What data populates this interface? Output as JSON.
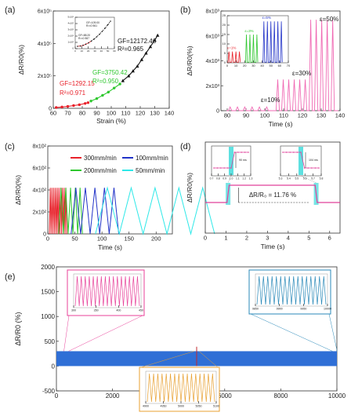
{
  "chart_data": [
    {
      "panel": "(a)",
      "type": "scatter",
      "xlabel": "Strain (%)",
      "ylabel": "ΔR/R0(%)",
      "xlim": [
        60,
        140
      ],
      "ylim": [
        0,
        600000
      ],
      "xticks": [
        "60",
        "70",
        "80",
        "90",
        "100",
        "110",
        "120",
        "130",
        "140"
      ],
      "yticks": [
        "0",
        "2x10⁵",
        "4x10⁵",
        "6x10⁵"
      ],
      "series": [
        {
          "color": "#e8212a",
          "x": [
            62,
            66,
            70,
            74,
            78,
            82,
            84
          ],
          "y": [
            5000,
            8000,
            12000,
            17000,
            22000,
            30000,
            35000
          ]
        },
        {
          "color": "#2ec72e",
          "x": [
            86,
            90,
            94,
            98,
            102,
            106
          ],
          "y": [
            45000,
            60000,
            80000,
            100000,
            125000,
            150000
          ]
        },
        {
          "color": "#111111",
          "x": [
            108,
            112,
            115,
            118,
            121,
            124,
            127,
            130,
            132
          ],
          "y": [
            170000,
            200000,
            230000,
            260000,
            300000,
            340000,
            380000,
            420000,
            450000
          ]
        }
      ],
      "annotations": [
        {
          "text": "GF=1292.15",
          "color": "#e8212a"
        },
        {
          "text": "R²=0.971",
          "color": "#e8212a"
        },
        {
          "text": "GF=3750.42",
          "color": "#2ec72e"
        },
        {
          "text": "R²=0.950",
          "color": "#2ec72e"
        },
        {
          "text": "GF=12172.46",
          "color": "#111111"
        },
        {
          "text": "R²=0.965",
          "color": "#111111"
        }
      ],
      "inset": {
        "xticks": [
          "0",
          "10",
          "20",
          "30",
          "40",
          "50",
          "60"
        ],
        "yticks": [
          "0",
          "1x10³",
          "2x10³",
          "3x10³",
          "4x10³",
          "5x10³"
        ],
        "labels": [
          "GF=109.00",
          "R²=0.961",
          "GF=88.20",
          "R²=0.987"
        ]
      }
    },
    {
      "panel": "(b)",
      "type": "line",
      "xlabel": "Time (s)",
      "ylabel": "ΔR/R0(%)",
      "xlim": [
        75,
        140
      ],
      "ylim": [
        0,
        8000
      ],
      "xticks": [
        "80",
        "90",
        "100",
        "110",
        "120",
        "130",
        "140"
      ],
      "yticks": [
        "0",
        "2x10³",
        "4x10³",
        "6x10³",
        "8x10³"
      ],
      "annotations": [
        "ε=10%",
        "ε=30%",
        "ε=50%"
      ],
      "series": [
        {
          "label": "ε=10%",
          "color": "#f06ab4",
          "peaks_x": [
            80,
            84,
            88,
            92,
            96,
            100
          ],
          "peak_value": 300
        },
        {
          "label": "ε=30%",
          "color": "#f06ab4",
          "peaks_x": [
            106,
            109,
            112,
            115,
            118,
            121
          ],
          "peak_value": 2500
        },
        {
          "label": "ε=50%",
          "color": "#f06ab4",
          "peaks_x": [
            124,
            127,
            130,
            133,
            136
          ],
          "peak_value": 7300
        }
      ],
      "inset": {
        "xticks": [
          "0",
          "10",
          "20",
          "30",
          "40",
          "50",
          "60",
          "70"
        ],
        "yticks": [
          "0",
          "5",
          "10",
          "15",
          "20",
          "25"
        ],
        "series": [
          {
            "label": "ε=1%",
            "color": "#e8212a",
            "peaks_x": [
              2,
              6,
              10,
              14
            ],
            "peak_value": 6
          },
          {
            "label": "ε=3%",
            "color": "#2ec72e",
            "peaks_x": [
              22,
              26,
              30,
              34
            ],
            "peak_value": 15
          },
          {
            "label": "ε=5%",
            "color": "#2233c8",
            "peaks_x": [
              42,
              46,
              50,
              54,
              58,
              62
            ],
            "peak_value": 22
          }
        ]
      }
    },
    {
      "panel": "(c)",
      "type": "line",
      "xlabel": "Time (s)",
      "ylabel": "ΔR/R0(%)",
      "xlim": [
        0,
        230
      ],
      "ylim": [
        0,
        800
      ],
      "xticks": [
        "0",
        "50",
        "100",
        "150",
        "200"
      ],
      "yticks": [
        "0",
        "2x10²",
        "4x10²",
        "6x10²",
        "8x10²"
      ],
      "peak_value": 420,
      "series": [
        {
          "name": "300mm/min",
          "color": "#e8212a",
          "start": 3,
          "period": 1.6,
          "cycles": 10
        },
        {
          "name": "200mm/min",
          "color": "#2ec72e",
          "start": 20,
          "period": 4.4,
          "cycles": 5
        },
        {
          "name": "100mm/min",
          "color": "#2233c8",
          "start": 43,
          "period": 8.8,
          "cycles": 5
        },
        {
          "name": "50mm/min",
          "color": "#2ee8e8",
          "start": 88,
          "period": 22,
          "cycles": 5
        }
      ]
    },
    {
      "panel": "(d)",
      "type": "line",
      "xlabel": "Time (s)",
      "ylabel": "ΔR/R0(%)",
      "xlim": [
        0,
        6.5
      ],
      "xticks": [
        "0",
        "1",
        "2",
        "3",
        "4",
        "5",
        "6"
      ],
      "baseline": 0,
      "plateau": 11.76,
      "step_up_time": 1.1,
      "step_down_time": 5.35,
      "annotation": "ΔR/R₀ = 11.76 %",
      "insets": [
        {
          "label": "90 ms",
          "xticks": [
            "0.7",
            "0.8",
            "0.9",
            "1.0",
            "1.1",
            "1.2",
            "1.3"
          ]
        },
        {
          "label": "104 ms",
          "xticks": [
            "5.3",
            "5.4",
            "5.5",
            "5.6",
            "5.7",
            "5.8"
          ]
        }
      ]
    },
    {
      "panel": "(e)",
      "type": "line",
      "xlabel": "Cycles",
      "ylabel": "ΔR/R0 (%)",
      "xlim": [
        0,
        10000
      ],
      "ylim": [
        -500,
        2000
      ],
      "xticks": [
        "0",
        "2000",
        "4000",
        "6000",
        "8000",
        "10000"
      ],
      "yticks": [
        "-500",
        "0",
        "500",
        "1000",
        "1500",
        "2000"
      ],
      "band_value": 300,
      "insets": [
        {
          "color": "#e8409a",
          "xticks": [
            "300",
            "350",
            "400",
            "450"
          ]
        },
        {
          "color": "#e8a030",
          "xticks": [
            "4900",
            "4950",
            "5000",
            "5050",
            "5100"
          ]
        },
        {
          "color": "#2888b8",
          "xticks": [
            "9850",
            "9900",
            "9950",
            "10000"
          ]
        }
      ]
    }
  ]
}
